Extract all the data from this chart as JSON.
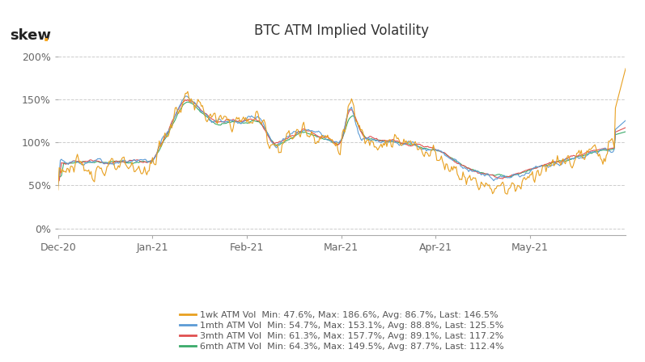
{
  "title": "BTC ATM Implied Volatility",
  "skew_dot_color": "#f5a623",
  "background_color": "#ffffff",
  "grid_color": "#cccccc",
  "y_ticks": [
    0,
    50,
    100,
    150,
    200
  ],
  "y_tick_labels": [
    "0%",
    "50%",
    "100%",
    "150%",
    "200%"
  ],
  "ylim": [
    -8,
    215
  ],
  "n_points": 500,
  "series": [
    {
      "label": "1wk ATM Vol",
      "color": "#e8a020",
      "linewidth": 0.8,
      "stats": "Min: 47.6%, Max: 186.6%, Avg: 86.7%, Last: 146.5%",
      "zorder": 4
    },
    {
      "label": "1mth ATM Vol",
      "color": "#5b9bd5",
      "linewidth": 0.8,
      "stats": "Min: 54.7%, Max: 153.1%, Avg: 88.8%, Last: 125.5%",
      "zorder": 3
    },
    {
      "label": "3mth ATM Vol",
      "color": "#e05050",
      "linewidth": 0.8,
      "stats": "Min: 61.3%, Max: 157.7%, Avg: 89.1%, Last: 117.2%",
      "zorder": 2
    },
    {
      "label": "6mth ATM Vol",
      "color": "#3aaa6a",
      "linewidth": 0.8,
      "stats": "Min: 64.3%, Max: 149.5%, Avg: 87.7%, Last: 112.4%",
      "zorder": 1
    }
  ],
  "x_tick_labels": [
    "Dec-20",
    "Jan-21",
    "Feb-21",
    "Mar-21",
    "Apr-21",
    "May-21"
  ],
  "legend_fontsize": 8.0,
  "title_fontsize": 12
}
